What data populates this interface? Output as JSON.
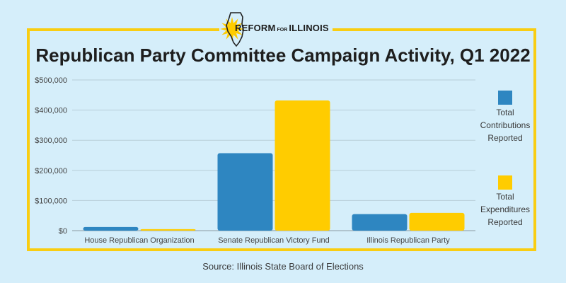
{
  "logo": {
    "part1": "REFORM",
    "part2": "FOR",
    "part3": "ILLINOIS"
  },
  "chart_data": {
    "type": "bar",
    "title": "Republican Party Committee Campaign Activity, Q1 2022",
    "categories": [
      "House Republican Organization",
      "Senate Republican Victory Fund",
      "Illinois Republican Party"
    ],
    "series": [
      {
        "name": "Total Contributions Reported",
        "color": "#2e86c1",
        "values": [
          12000,
          257000,
          55000
        ]
      },
      {
        "name": "Total Expenditures Reported",
        "color": "#ffcc00",
        "values": [
          5000,
          432000,
          59000
        ]
      }
    ],
    "yticks": [
      "$0",
      "$100,000",
      "$200,000",
      "$300,000",
      "$400,000",
      "$500,000"
    ],
    "ylim": [
      0,
      500000
    ],
    "grid": true,
    "legend_position": "right",
    "xlabel": "",
    "ylabel": ""
  },
  "legend": [
    {
      "label": "Total\nContributions\nReported",
      "color": "#2e86c1"
    },
    {
      "label": "Total\nExpenditures\nReported",
      "color": "#ffcc00"
    }
  ],
  "source": "Source: Illinois State Board of Elections",
  "colors": {
    "background": "#d5eefa",
    "frame": "#f9cd12",
    "grid": "#b8cdd8"
  }
}
